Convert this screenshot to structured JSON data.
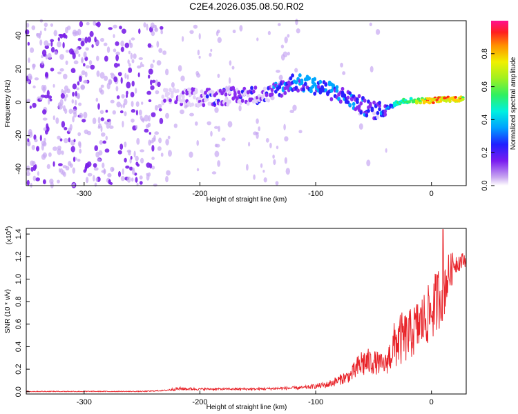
{
  "title": "C2E4.2026.035.08.50.R02",
  "chart_data": [
    {
      "type": "heatmap",
      "name": "spectrogram",
      "xlabel": "Height of straight line (km)",
      "ylabel": "Frequency (Hz)",
      "xlim": [
        -350,
        30
      ],
      "ylim": [
        -50,
        49
      ],
      "xticks": [
        -300,
        -200,
        -100,
        0
      ],
      "xtick_labels": [
        "-300",
        "-200",
        "-100",
        "0"
      ],
      "yticks": [
        -40,
        -20,
        0,
        20,
        40
      ],
      "ytick_labels": [
        "-40",
        "-20",
        "0",
        "20",
        "40"
      ],
      "colorbar": {
        "label": "Normalized spectral amplitude",
        "range": [
          0,
          1
        ],
        "ticks": [
          0.0,
          0.2,
          0.4,
          0.6,
          0.8
        ],
        "tick_labels": [
          "0.0",
          "0.2",
          "0.4",
          "0.6",
          "0.8"
        ]
      },
      "ridge": {
        "x": [
          -230,
          -200,
          -160,
          -140,
          -120,
          -100,
          -80,
          -60,
          -50,
          -40,
          -30,
          -20,
          0,
          10,
          30
        ],
        "y": [
          3,
          3,
          4,
          5,
          12,
          10,
          5,
          -2,
          -5,
          -4,
          0,
          1,
          1,
          2,
          2
        ],
        "amplitude": [
          0.2,
          0.25,
          0.3,
          0.35,
          0.45,
          0.45,
          0.45,
          0.4,
          0.35,
          0.4,
          0.55,
          0.7,
          0.95,
          0.95,
          0.9
        ]
      }
    },
    {
      "type": "line",
      "name": "snr",
      "xlabel": "Height of straight line (km)",
      "ylabel": "SNR (10 * v/v)",
      "multiplier": "(x10",
      "multiplier_exp": "4",
      "xlim": [
        -350,
        30
      ],
      "ylim": [
        -0.02,
        1.45
      ],
      "xticks": [
        -300,
        -200,
        -100,
        0
      ],
      "xtick_labels": [
        "-300",
        "-200",
        "-100",
        "0"
      ],
      "yticks": [
        0.0,
        0.2,
        0.4,
        0.6,
        0.8,
        1.0,
        1.2,
        1.4
      ],
      "ytick_labels": [
        "0.0",
        "0.2",
        "0.4",
        "0.6",
        "0.8",
        "1.0",
        "1.2",
        "1.4"
      ],
      "color": "#e8242a",
      "envelope": {
        "x": [
          -350,
          -250,
          -230,
          -220,
          -200,
          -150,
          -110,
          -90,
          -70,
          -60,
          -50,
          -40,
          -30,
          -20,
          -10,
          0,
          10,
          20,
          30
        ],
        "base": [
          0.0,
          0.0,
          0.01,
          0.02,
          0.02,
          0.02,
          0.03,
          0.05,
          0.12,
          0.2,
          0.22,
          0.2,
          0.35,
          0.4,
          0.5,
          0.6,
          0.8,
          1.1,
          1.15
        ],
        "spread": [
          0.01,
          0.01,
          0.01,
          0.03,
          0.02,
          0.02,
          0.03,
          0.06,
          0.12,
          0.28,
          0.22,
          0.18,
          0.5,
          0.45,
          0.5,
          0.55,
          0.6,
          0.2,
          0.12
        ],
        "peak": {
          "x": 10,
          "y": 1.44
        }
      }
    }
  ]
}
